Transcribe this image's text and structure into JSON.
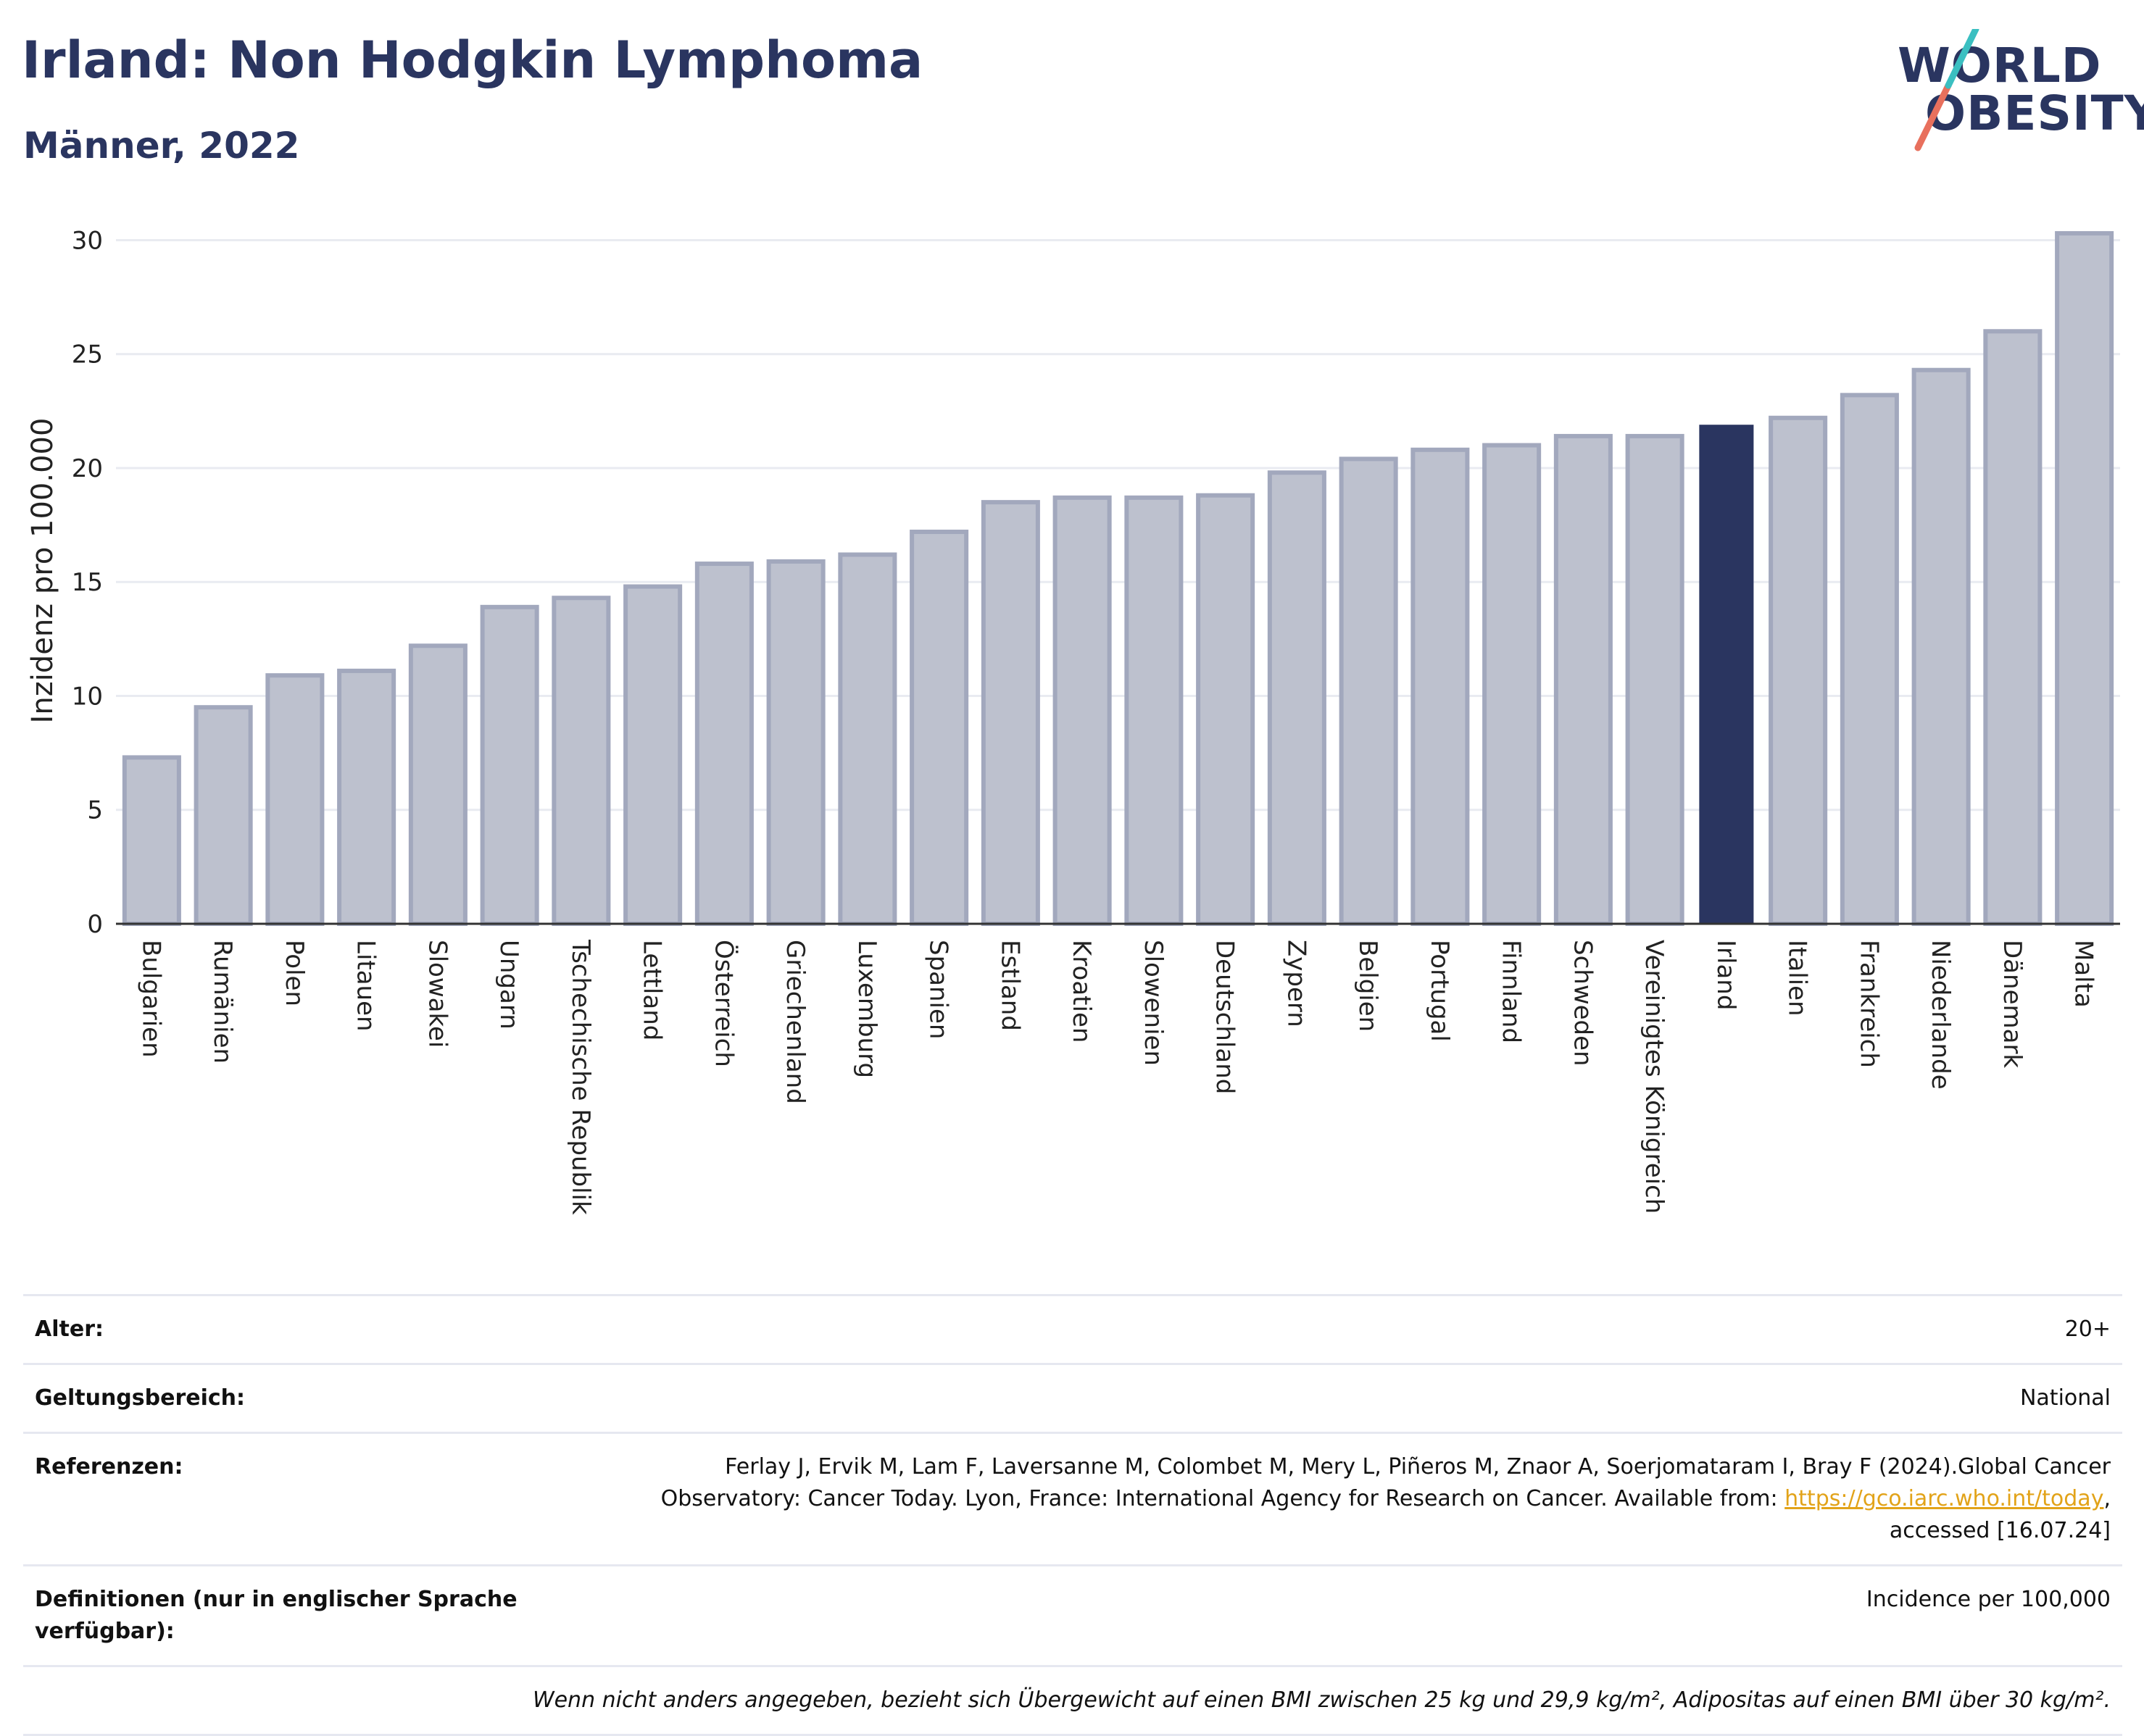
{
  "header": {
    "title": "Irland: Non Hodgkin Lymphoma",
    "subtitle": "Männer, 2022"
  },
  "logo": {
    "line1": "WORLD",
    "line2": "OBESITY",
    "text": "WORLD OBESITY",
    "accent_colors": [
      "#e8705d",
      "#3bbfc1"
    ]
  },
  "chart_data": {
    "type": "bar",
    "title": "Irland: Non Hodgkin Lymphoma",
    "subtitle": "Männer, 2022",
    "xlabel": "",
    "ylabel": "Inzidenz pro 100.000",
    "ylim": [
      0,
      31
    ],
    "yticks": [
      0,
      5,
      10,
      15,
      20,
      25,
      30
    ],
    "grid": true,
    "highlight": "Irland",
    "colors": {
      "bar": "#bdc1ce",
      "bar_border": "#a2a8bd",
      "highlight": "#2a3560"
    },
    "categories": [
      "Bulgarien",
      "Rumänien",
      "Polen",
      "Litauen",
      "Slowakei",
      "Ungarn",
      "Tschechische Republik",
      "Lettland",
      "Österreich",
      "Griechenland",
      "Luxemburg",
      "Spanien",
      "Estland",
      "Kroatien",
      "Slowenien",
      "Deutschland",
      "Zypern",
      "Belgien",
      "Portugal",
      "Finnland",
      "Schweden",
      "Vereinigtes Königreich",
      "Irland",
      "Italien",
      "Frankreich",
      "Niederlande",
      "Dänemark",
      "Malta"
    ],
    "values": [
      7.3,
      9.5,
      10.9,
      11.1,
      12.2,
      13.9,
      14.3,
      14.8,
      15.8,
      15.9,
      16.2,
      17.2,
      18.5,
      18.7,
      18.7,
      18.8,
      19.8,
      20.4,
      20.8,
      21.0,
      21.4,
      21.4,
      21.9,
      22.2,
      23.2,
      24.3,
      26.0,
      30.3
    ]
  },
  "meta": {
    "age": {
      "label": "Alter:",
      "value": "20+"
    },
    "scope": {
      "label": "Geltungsbereich:",
      "value": "National"
    },
    "refs": {
      "label": "Referenzen:",
      "text1": "Ferlay J, Ervik M, Lam F, Laversanne M, Colombet M, Mery L, Piñeros M, Znaor A, Soerjomataram I, Bray F (2024).Global Cancer",
      "text2": "Observatory: Cancer Today. Lyon, France: International Agency for Research on Cancer. Available from: ",
      "link": "https://gco.iarc.who.int/today",
      "text3": ",",
      "text4": "accessed [16.07.24]"
    },
    "definitions": {
      "label": "Definitionen (nur in englischer Sprache verfügbar):",
      "value": "Incidence per 100,000"
    },
    "note": "Wenn nicht anders angegeben, bezieht sich Übergewicht auf einen BMI zwischen 25 kg und 29,9 kg/m², Adipositas auf einen BMI über 30 kg/m²."
  }
}
